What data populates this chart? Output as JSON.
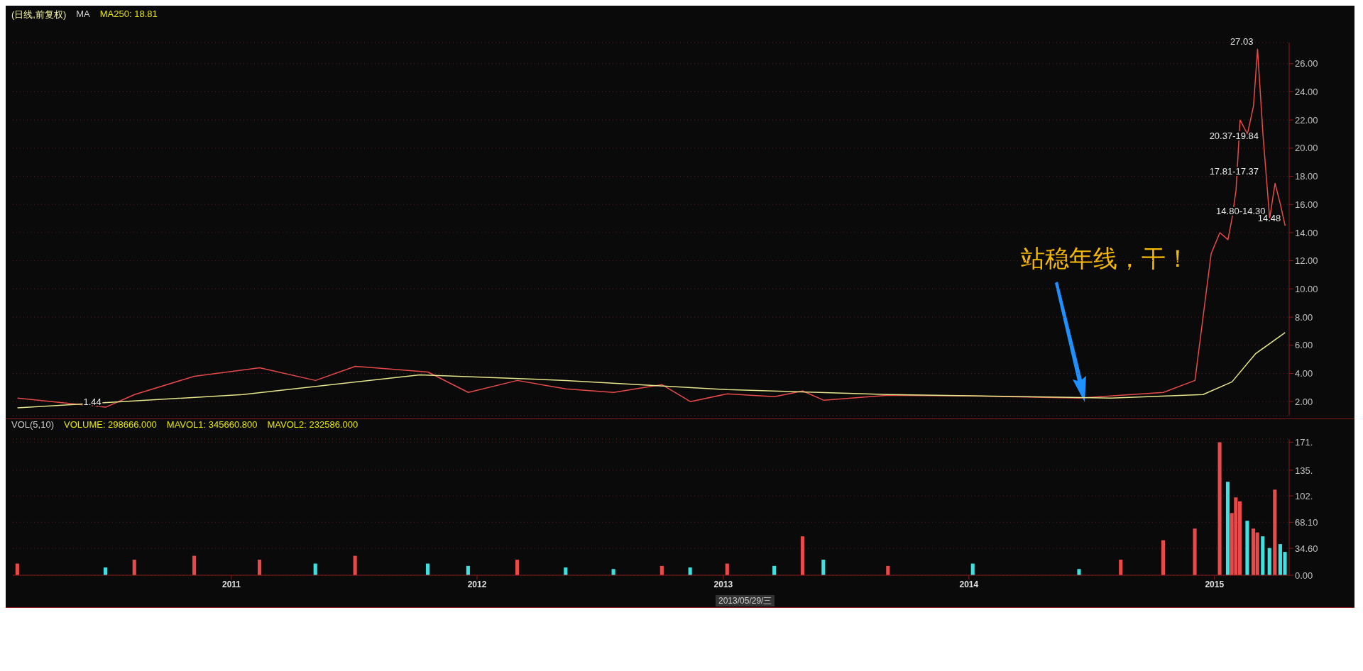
{
  "chart_data": [
    {
      "type": "line",
      "title": "(日线,前复权)",
      "annotations": [
        "MA",
        "MA250: 18.81",
        "站稳年线，干！",
        {
          "text": "27.03",
          "x": "2015-03-06",
          "y": 27.03
        },
        {
          "text": "1.44",
          "x": "2010-06-28",
          "y": 1.44
        },
        {
          "text": "20.37-19.84",
          "x": "2015-03-14",
          "y": 20.37
        },
        {
          "text": "17.81-17.37",
          "x": "2015-03-14",
          "y": 17.81
        },
        {
          "text": "14.80-14.30",
          "x": "2015-03-24",
          "y": 15
        },
        {
          "text": "14.48",
          "x": "2015-04-16",
          "y": 14.48
        }
      ],
      "xlim": [
        "2010-02-10",
        "2015-04-22"
      ],
      "ylim": [
        1,
        27.5
      ],
      "yticks": [
        {
          "value": 2,
          "label": "2.00"
        },
        {
          "value": 4,
          "label": "4.00"
        },
        {
          "value": 6,
          "label": "6.00"
        },
        {
          "value": 8,
          "label": "8.00"
        },
        {
          "value": 10,
          "label": "10.00"
        },
        {
          "value": 12,
          "label": "12.00"
        },
        {
          "value": 14,
          "label": "14.00"
        },
        {
          "value": 16,
          "label": "16.00"
        },
        {
          "value": 18,
          "label": "18.00"
        },
        {
          "value": 20,
          "label": "20.00"
        },
        {
          "value": 22,
          "label": "22.00"
        },
        {
          "value": 24,
          "label": "24.00"
        },
        {
          "value": 26,
          "label": "26.00"
        }
      ],
      "tick_labels": "y",
      "grid": "y",
      "marker": "none",
      "line_style": "solid",
      "series": [
        {
          "color": "#e84a4a",
          "x": [
            "2010-02-17",
            "2010-06-28",
            "2010-08-10",
            "2010-11-07",
            "2011-02-12",
            "2011-05-06",
            "2011-07-04",
            "2011-10-20",
            "2011-12-19",
            "2012-03-01",
            "2012-05-12",
            "2012-07-22",
            "2012-10-02",
            "2012-11-13",
            "2013-01-07",
            "2013-03-18",
            "2013-04-29",
            "2013-05-30",
            "2013-09-03",
            "2014-01-07",
            "2014-06-14",
            "2014-08-15",
            "2014-10-17",
            "2014-12-03",
            "2014-12-27",
            "2015-01-09",
            "2015-01-21",
            "2015-01-27",
            "2015-02-02",
            "2015-02-08",
            "2015-02-19",
            "2015-02-28",
            "2015-03-06",
            "2015-03-14",
            "2015-03-24",
            "2015-04-01",
            "2015-04-09",
            "2015-04-16"
          ],
          "values": [
            2.25,
            1.6,
            2.5,
            3.8,
            4.4,
            3.5,
            4.5,
            4.1,
            2.65,
            3.5,
            2.9,
            2.65,
            3.2,
            2.0,
            2.55,
            2.35,
            2.75,
            2.1,
            2.45,
            2.4,
            2.25,
            2.45,
            2.65,
            3.5,
            12.5,
            14,
            13.5,
            15,
            17,
            22,
            21,
            23,
            27.03,
            21,
            15,
            17.5,
            16,
            14.48
          ]
        },
        {
          "color": "#e6e68c",
          "x": [
            "2010-02-17",
            "2011-01-18",
            "2011-10-08",
            "2012-05-12",
            "2013-01-07",
            "2013-09-03",
            "2014-07-31",
            "2014-12-15",
            "2015-01-27",
            "2015-03-03",
            "2015-04-16"
          ],
          "values": [
            1.55,
            2.5,
            3.9,
            3.5,
            2.85,
            2.5,
            2.25,
            2.5,
            3.4,
            5.4,
            6.9
          ]
        }
      ]
    },
    {
      "type": "bar",
      "annotations": [
        "VOL(5,10)",
        "VOLUME: 298666.000",
        "MAVOL1: 345660.800",
        "MAVOL2: 232586.000",
        "2013/05/29/三"
      ],
      "xlim": [
        "2010-02-10",
        "2015-04-22"
      ],
      "xticks": [
        {
          "value": "2011-01-01",
          "label": "2011"
        },
        {
          "value": "2012-01-01",
          "label": "2012"
        },
        {
          "value": "2013-01-01",
          "label": "2013"
        },
        {
          "value": "2014-01-01",
          "label": "2014"
        },
        {
          "value": "2015-01-01",
          "label": "2015"
        }
      ],
      "ylim": [
        0,
        175
      ],
      "yticks": [
        {
          "value": 0,
          "label": "0.00"
        },
        {
          "value": 34.6,
          "label": "34.60"
        },
        {
          "value": 68.1,
          "label": "68.10"
        },
        {
          "value": 102,
          "label": "102."
        },
        {
          "value": 135,
          "label": "135."
        },
        {
          "value": 171,
          "label": "171."
        }
      ],
      "grid": "y",
      "x": [
        "2010-02-17",
        "2010-06-28",
        "2010-08-10",
        "2010-11-07",
        "2011-02-12",
        "2011-05-06",
        "2011-07-04",
        "2011-10-20",
        "2011-12-19",
        "2012-03-01",
        "2012-05-12",
        "2012-07-22",
        "2012-10-02",
        "2012-11-13",
        "2013-01-07",
        "2013-03-18",
        "2013-04-29",
        "2013-05-30",
        "2013-09-03",
        "2014-01-07",
        "2014-06-14",
        "2014-08-15",
        "2014-10-17",
        "2014-12-03",
        "2015-01-09",
        "2015-01-21",
        "2015-01-27",
        "2015-02-02",
        "2015-02-08",
        "2015-02-19",
        "2015-02-28",
        "2015-03-06",
        "2015-03-14",
        "2015-03-24",
        "2015-04-01",
        "2015-04-09",
        "2015-04-16"
      ],
      "values": [
        15,
        10,
        20,
        25,
        20,
        15,
        25,
        15,
        12,
        20,
        10,
        8,
        12,
        10,
        15,
        12,
        50,
        20,
        12,
        15,
        8,
        20,
        45,
        60,
        171,
        120,
        80,
        100,
        95,
        70,
        60,
        55,
        50,
        35,
        110,
        40,
        30
      ],
      "colors": [
        "#e84a4a",
        "#40e0e0",
        "#e84a4a",
        "#e84a4a",
        "#e84a4a",
        "#40e0e0",
        "#e84a4a",
        "#40e0e0",
        "#40e0e0",
        "#e84a4a",
        "#40e0e0",
        "#40e0e0",
        "#e84a4a",
        "#40e0e0",
        "#e84a4a",
        "#40e0e0",
        "#e84a4a",
        "#40e0e0",
        "#e84a4a",
        "#40e0e0",
        "#40e0e0",
        "#e84a4a",
        "#e84a4a",
        "#e84a4a",
        "#e84a4a",
        "#40e0e0",
        "#e84a4a",
        "#e84a4a",
        "#e84a4a",
        "#40e0e0",
        "#e84a4a",
        "#e84a4a",
        "#40e0e0",
        "#40e0e0",
        "#e84a4a",
        "#40e0e0",
        "#40e0e0"
      ]
    }
  ]
}
